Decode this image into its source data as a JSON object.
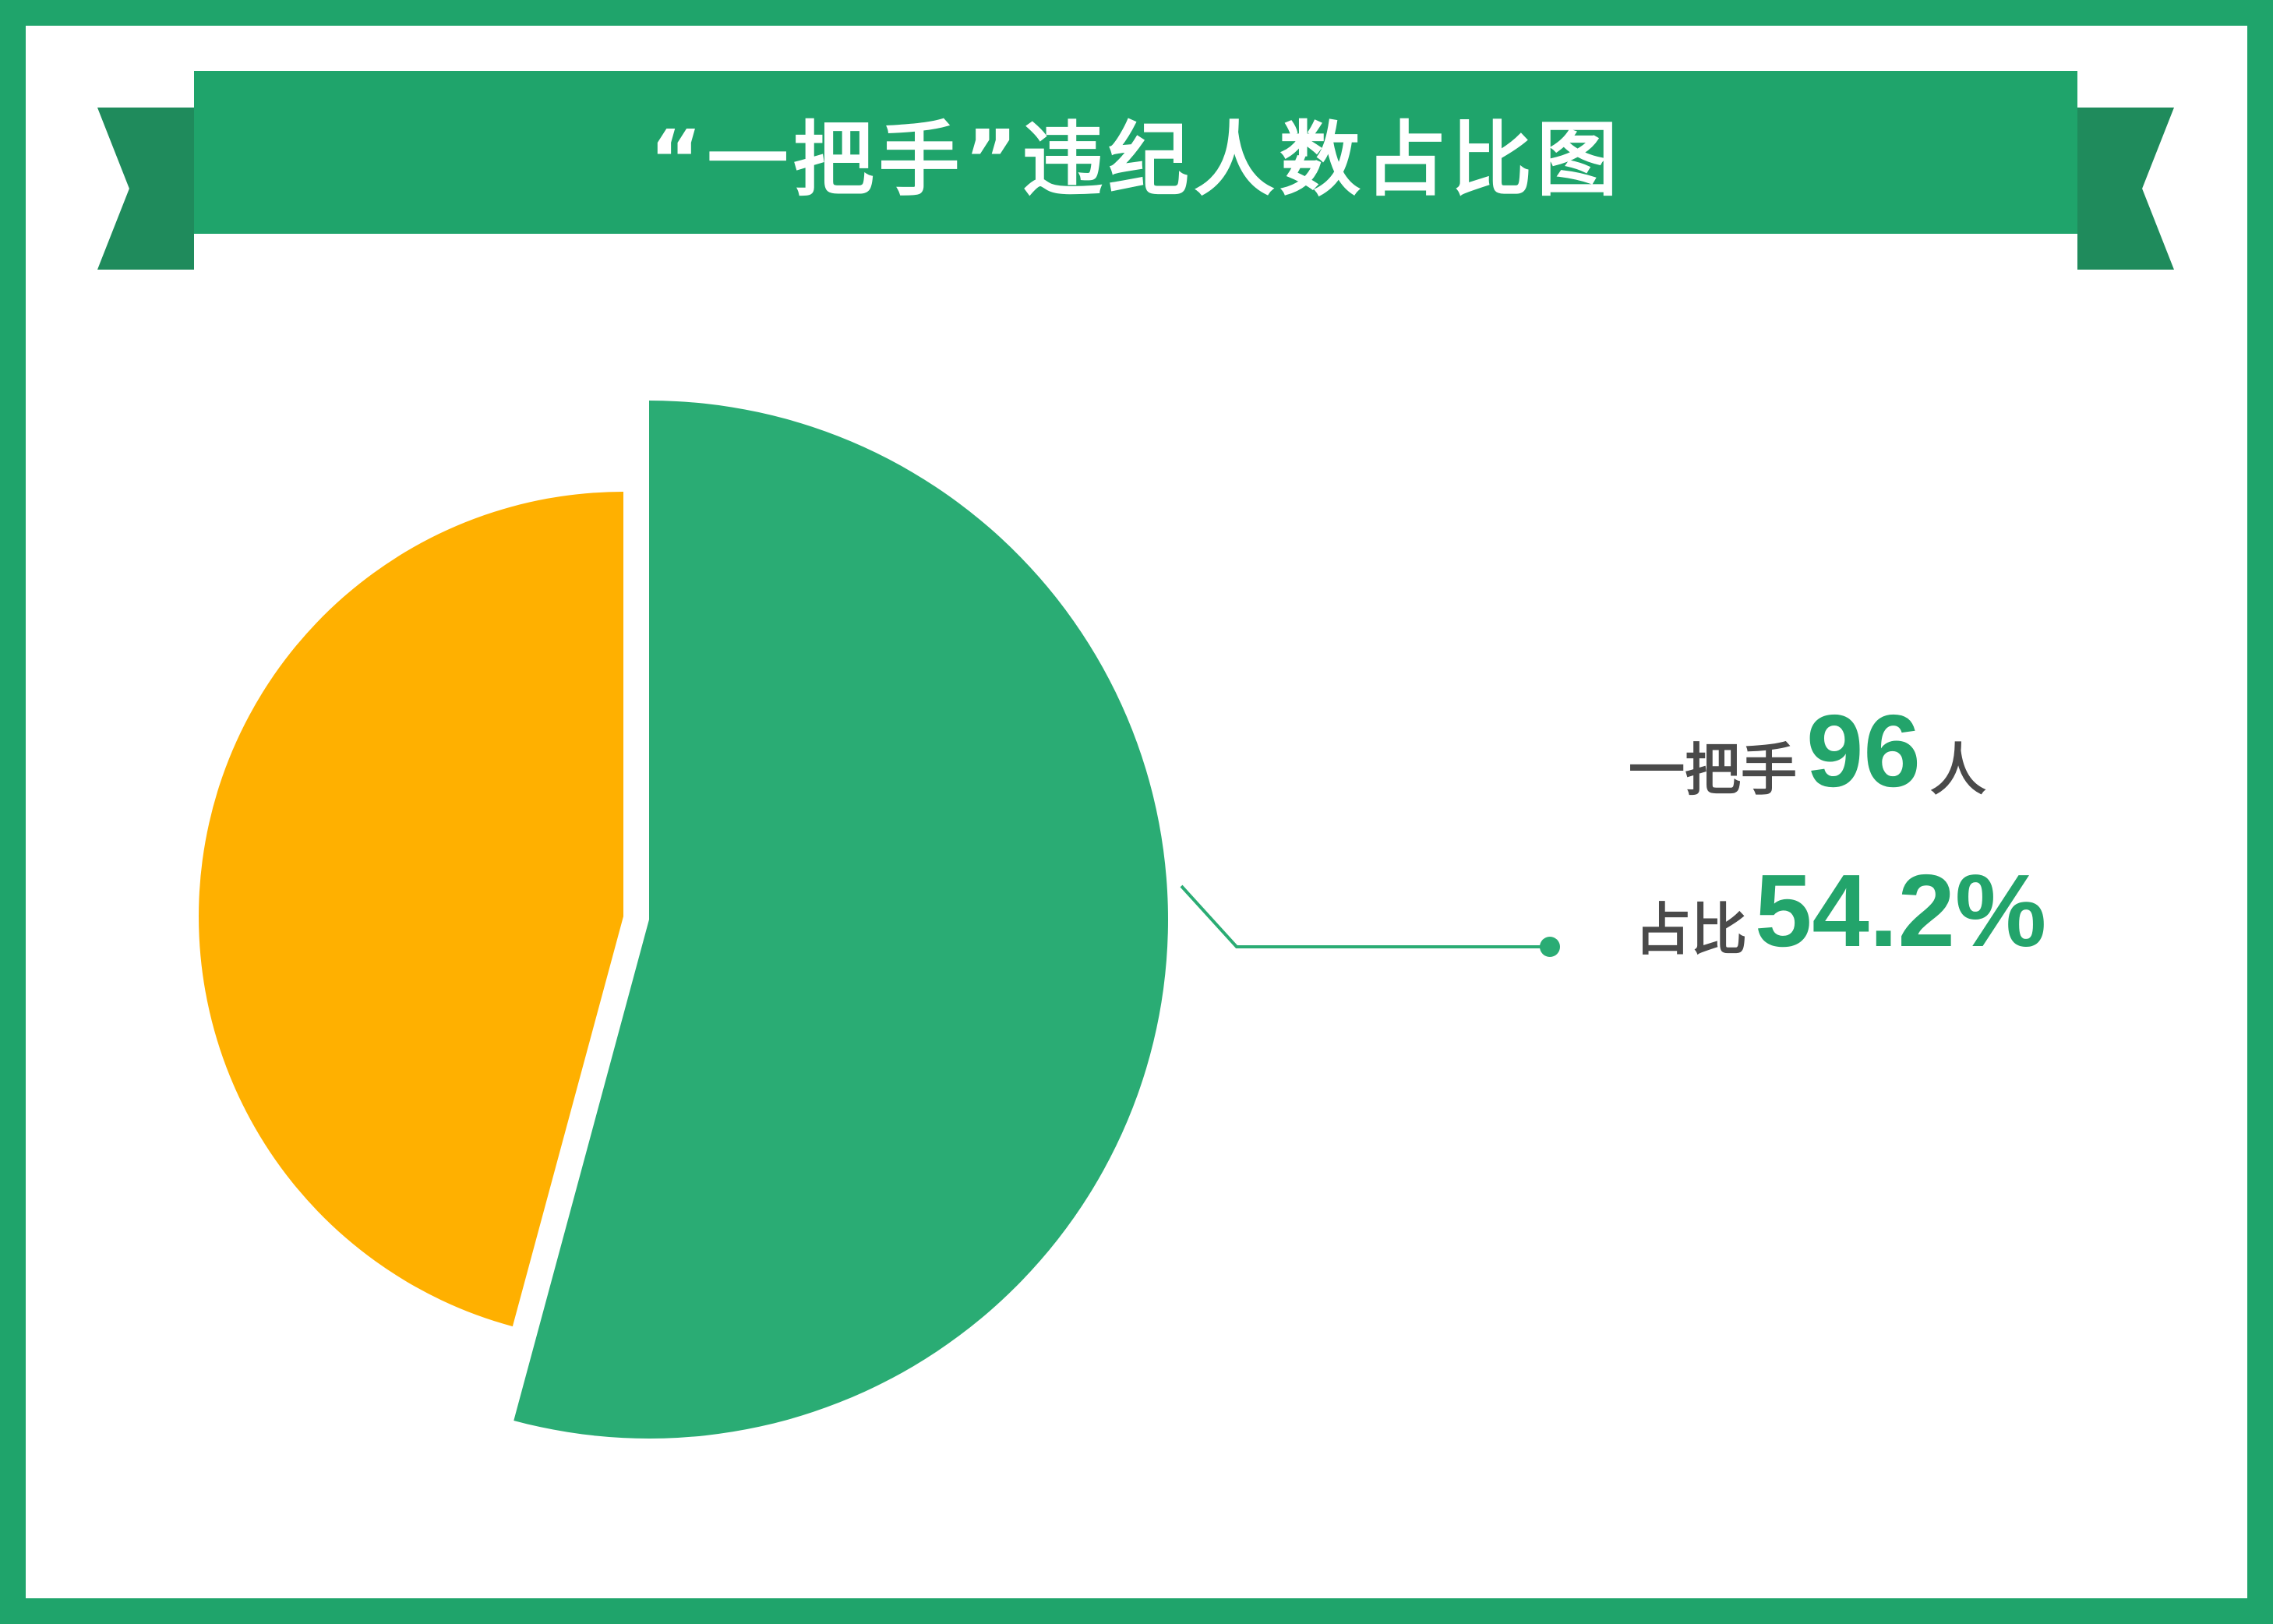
{
  "title": "“一把手”违纪人数占比图",
  "colors": {
    "frame": "#1fa46b",
    "ribbon_tail": "#1f8b5c",
    "slice_main": "#2aac74",
    "slice_other": "#ffb000",
    "text": "#4a4a4a",
    "accent_text": "#23a46b"
  },
  "chart_data": {
    "type": "pie",
    "title": "“一把手”违纪人数占比图",
    "slices": [
      {
        "label": "一把手",
        "count": 96,
        "percent": 54.2,
        "color": "#2aac74",
        "exploded": false
      },
      {
        "label": "",
        "percent": 45.8,
        "color": "#ffb000",
        "exploded": true
      }
    ],
    "annotation": {
      "line1_prefix": "一把手",
      "line1_value": "96",
      "line1_suffix": "人",
      "line2_prefix": "占比",
      "line2_value": "54.2%"
    }
  }
}
